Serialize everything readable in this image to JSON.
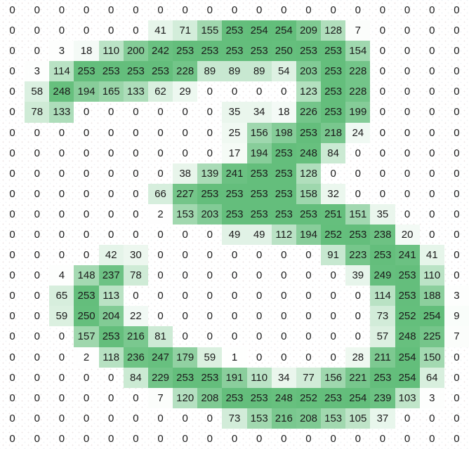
{
  "chart_data": {
    "type": "heatmap",
    "description_visible": "grid of integer pixel intensities shaded white-to-green forming the digit 2",
    "rows": 22,
    "cols": 19,
    "title": "",
    "xlabel": "",
    "ylabel": "",
    "legend": "none",
    "grid": "faint speckled gridlines in white regions",
    "annotation_style": "integer value centered in each cell, black text",
    "colormap": {
      "min_color": "#ffffff",
      "max_color": "#63be7b",
      "domain": [
        0,
        254
      ]
    },
    "values": [
      [
        0,
        0,
        0,
        0,
        0,
        0,
        0,
        0,
        0,
        0,
        0,
        0,
        0,
        0,
        0,
        0,
        0,
        0,
        0
      ],
      [
        0,
        0,
        0,
        0,
        0,
        0,
        41,
        71,
        155,
        253,
        254,
        254,
        209,
        128,
        7,
        0,
        0,
        0,
        0
      ],
      [
        0,
        0,
        3,
        18,
        110,
        200,
        242,
        253,
        253,
        253,
        253,
        250,
        253,
        253,
        154,
        0,
        0,
        0,
        0
      ],
      [
        0,
        3,
        114,
        253,
        253,
        253,
        253,
        228,
        89,
        89,
        89,
        54,
        203,
        253,
        228,
        0,
        0,
        0,
        0
      ],
      [
        0,
        58,
        248,
        194,
        165,
        133,
        62,
        29,
        0,
        0,
        0,
        0,
        123,
        253,
        228,
        0,
        0,
        0,
        0
      ],
      [
        0,
        78,
        133,
        0,
        0,
        0,
        0,
        0,
        0,
        35,
        34,
        18,
        226,
        253,
        199,
        0,
        0,
        0,
        0
      ],
      [
        0,
        0,
        0,
        0,
        0,
        0,
        0,
        0,
        0,
        25,
        156,
        198,
        253,
        218,
        24,
        0,
        0,
        0,
        0
      ],
      [
        0,
        0,
        0,
        0,
        0,
        0,
        0,
        0,
        0,
        17,
        194,
        253,
        248,
        84,
        0,
        0,
        0,
        0,
        0
      ],
      [
        0,
        0,
        0,
        0,
        0,
        0,
        0,
        38,
        139,
        241,
        253,
        253,
        128,
        0,
        0,
        0,
        0,
        0,
        0
      ],
      [
        0,
        0,
        0,
        0,
        0,
        0,
        66,
        227,
        253,
        253,
        253,
        253,
        158,
        32,
        0,
        0,
        0,
        0,
        0
      ],
      [
        0,
        0,
        0,
        0,
        0,
        0,
        2,
        153,
        203,
        253,
        253,
        253,
        253,
        251,
        151,
        35,
        0,
        0,
        0
      ],
      [
        0,
        0,
        0,
        0,
        0,
        0,
        0,
        0,
        0,
        49,
        49,
        112,
        194,
        252,
        253,
        238,
        20,
        0,
        0
      ],
      [
        0,
        0,
        0,
        0,
        42,
        30,
        0,
        0,
        0,
        0,
        0,
        0,
        0,
        91,
        223,
        253,
        241,
        41,
        0
      ],
      [
        0,
        0,
        4,
        148,
        237,
        78,
        0,
        0,
        0,
        0,
        0,
        0,
        0,
        0,
        39,
        249,
        253,
        110,
        0
      ],
      [
        0,
        0,
        65,
        253,
        113,
        0,
        0,
        0,
        0,
        0,
        0,
        0,
        0,
        0,
        0,
        114,
        253,
        188,
        3
      ],
      [
        0,
        0,
        59,
        250,
        204,
        22,
        0,
        0,
        0,
        0,
        0,
        0,
        0,
        0,
        0,
        73,
        252,
        254,
        9
      ],
      [
        0,
        0,
        0,
        157,
        253,
        216,
        81,
        0,
        0,
        0,
        0,
        0,
        0,
        0,
        0,
        57,
        248,
        225,
        7
      ],
      [
        0,
        0,
        0,
        2,
        118,
        236,
        247,
        179,
        59,
        1,
        0,
        0,
        0,
        0,
        28,
        211,
        254,
        150,
        0
      ],
      [
        0,
        0,
        0,
        0,
        0,
        84,
        229,
        253,
        253,
        191,
        110,
        34,
        77,
        156,
        221,
        253,
        254,
        64,
        0
      ],
      [
        0,
        0,
        0,
        0,
        0,
        0,
        7,
        120,
        208,
        253,
        253,
        248,
        252,
        253,
        254,
        239,
        103,
        3,
        0
      ],
      [
        0,
        0,
        0,
        0,
        0,
        0,
        0,
        0,
        0,
        73,
        153,
        216,
        208,
        153,
        105,
        37,
        0,
        0,
        0
      ],
      [
        0,
        0,
        0,
        0,
        0,
        0,
        0,
        0,
        0,
        0,
        0,
        0,
        0,
        0,
        0,
        0,
        0,
        0,
        0
      ]
    ]
  }
}
